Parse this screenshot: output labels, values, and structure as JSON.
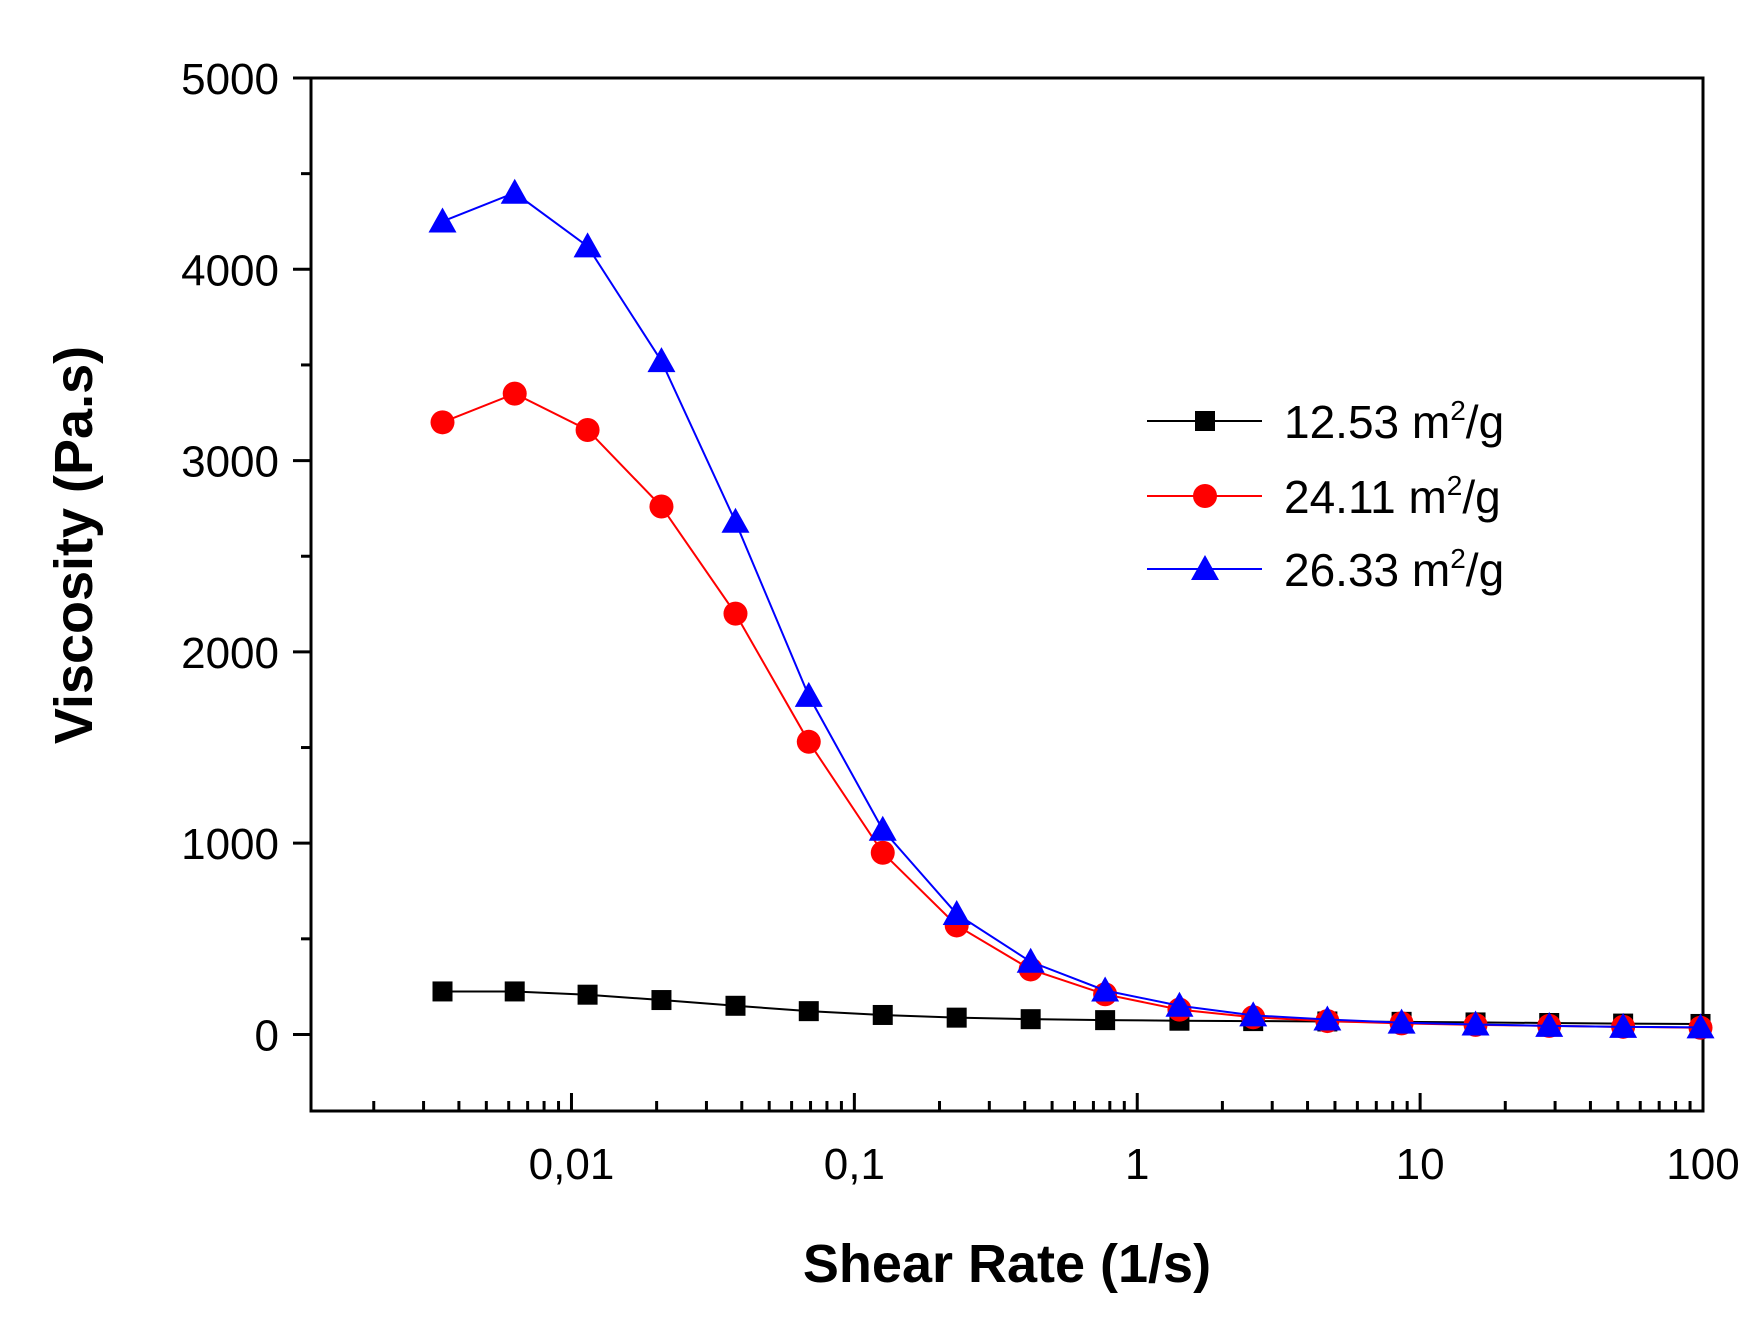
{
  "chart_data": {
    "type": "line",
    "xlabel": "Shear Rate (1/s)",
    "ylabel": "Viscosity (Pa.s)",
    "xscale": "log",
    "xlim": [
      0.0012,
      100
    ],
    "ylim": [
      -400,
      5000
    ],
    "xticks": [
      {
        "value": 0.01,
        "label": "0,01"
      },
      {
        "value": 0.1,
        "label": "0,1"
      },
      {
        "value": 1,
        "label": "1"
      },
      {
        "value": 10,
        "label": "10"
      },
      {
        "value": 100,
        "label": "100"
      }
    ],
    "yticks": [
      {
        "value": 0,
        "label": "0"
      },
      {
        "value": 1000,
        "label": "1000"
      },
      {
        "value": 2000,
        "label": "2000"
      },
      {
        "value": 3000,
        "label": "3000"
      },
      {
        "value": 4000,
        "label": "4000"
      },
      {
        "value": 5000,
        "label": "5000"
      }
    ],
    "legend_position": "center-right",
    "x": [
      0.0035,
      0.0063,
      0.0114,
      0.0208,
      0.038,
      0.069,
      0.126,
      0.23,
      0.42,
      0.77,
      1.41,
      2.57,
      4.7,
      8.6,
      15.7,
      28.6,
      52.2,
      98.0
    ],
    "series": [
      {
        "name": "12.53 m²/g",
        "label_base": "12.53 m",
        "label_sup": "2",
        "label_tail": "/g",
        "color": "#000000",
        "marker": "square",
        "values": [
          225,
          225,
          208,
          180,
          150,
          122,
          102,
          88,
          80,
          75,
          72,
          70,
          68,
          66,
          63,
          60,
          57,
          55
        ]
      },
      {
        "name": "24.11 m²/g",
        "label_base": "24.11 m",
        "label_sup": "2",
        "label_tail": "/g",
        "color": "#ff0000",
        "marker": "circle",
        "values": [
          3200,
          3350,
          3160,
          2760,
          2200,
          1530,
          950,
          570,
          340,
          210,
          130,
          90,
          70,
          58,
          50,
          45,
          40,
          35
        ]
      },
      {
        "name": "26.33 m²/g",
        "label_base": "26.33 m",
        "label_sup": "2",
        "label_tail": "/g",
        "color": "#0000ff",
        "marker": "triangle",
        "values": [
          4250,
          4400,
          4120,
          3520,
          2680,
          1770,
          1070,
          630,
          380,
          230,
          150,
          100,
          78,
          62,
          52,
          45,
          40,
          37
        ]
      }
    ]
  }
}
